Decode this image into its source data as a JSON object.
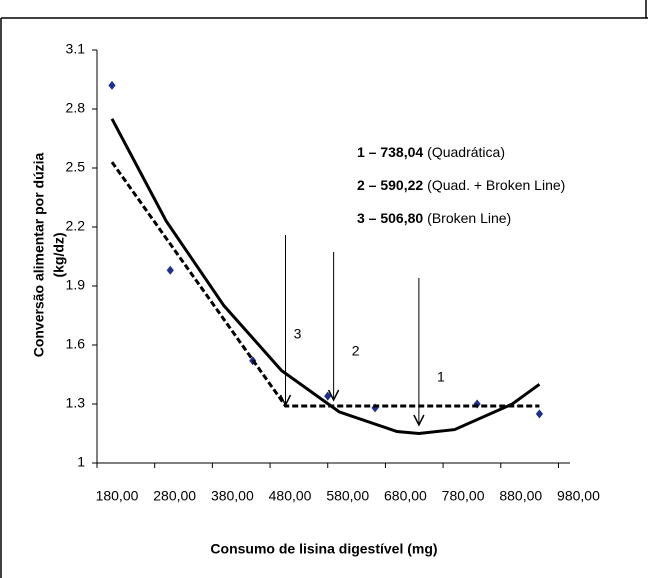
{
  "chart_data": {
    "type": "scatter",
    "ylabel": "Conversão alimentar por dúzia",
    "ylabel2": "(kg/dz)",
    "xlabel": "Consumo de lisina digestível (mg)",
    "xlim": [
      180,
      1000
    ],
    "ylim": [
      1,
      3.1
    ],
    "xticks": [
      {
        "value": 180,
        "label": "180,00"
      },
      {
        "value": 280,
        "label": "280,00"
      },
      {
        "value": 380,
        "label": "380,00"
      },
      {
        "value": 480,
        "label": "480,00"
      },
      {
        "value": 580,
        "label": "580,00"
      },
      {
        "value": 680,
        "label": "680,00"
      },
      {
        "value": 780,
        "label": "780,00"
      },
      {
        "value": 880,
        "label": "880,00"
      },
      {
        "value": 980,
        "label": "980,00"
      }
    ],
    "yticks": [
      1,
      1.3,
      1.6,
      1.9,
      2.2,
      2.5,
      2.8,
      3.1
    ],
    "series": [
      {
        "kind": "points",
        "color": "#1f2f8f",
        "x": [
          206,
          307,
          450,
          580,
          662,
          839,
          947
        ],
        "values": [
          2.92,
          1.98,
          1.52,
          1.34,
          1.28,
          1.3,
          1.25
        ]
      },
      {
        "kind": "solid",
        "color": "#000000",
        "x": [
          206,
          300,
          400,
          500,
          600,
          700,
          738,
          800,
          900,
          947
        ],
        "values": [
          2.75,
          2.23,
          1.8,
          1.47,
          1.26,
          1.16,
          1.15,
          1.17,
          1.3,
          1.4
        ]
      },
      {
        "kind": "dashed",
        "color": "#000000",
        "x": [
          206,
          506.8,
          947
        ],
        "values": [
          2.53,
          1.29,
          1.29
        ]
      }
    ],
    "arrows": [
      {
        "label": "3",
        "x": 506.8
      },
      {
        "label": "2",
        "x": 590.22
      },
      {
        "label": "1",
        "x": 738.04
      }
    ],
    "notes": [
      {
        "bold": "1 – 738,04",
        "text": "(Quadrática)"
      },
      {
        "bold": "2 – 590,22",
        "text": "(Quad. + Broken Line)"
      },
      {
        "bold": "3 – 506,80",
        "text": "(Broken Line)"
      }
    ]
  }
}
